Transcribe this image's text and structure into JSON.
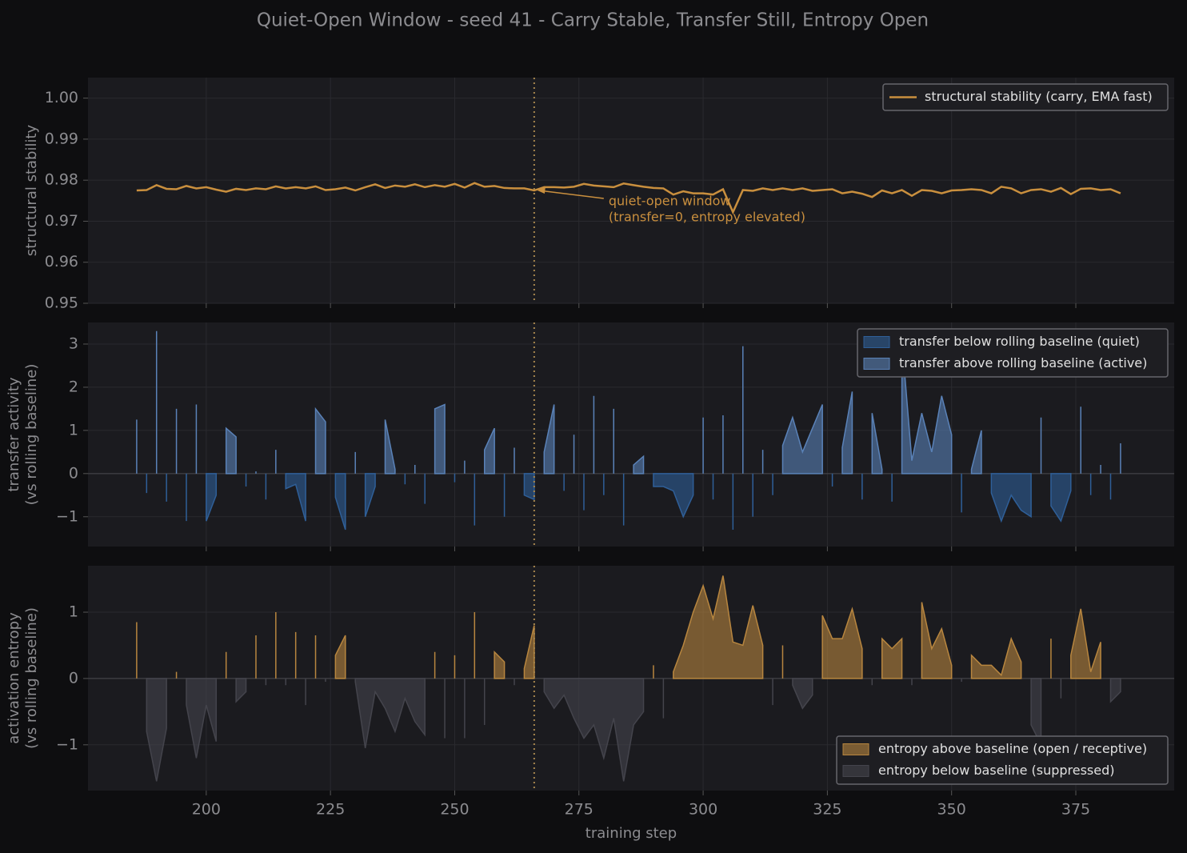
{
  "title": "Quiet-Open Window  - seed 41  - Carry Stable, Transfer Still, Entropy Open",
  "marker_x": 266,
  "chart_data": [
    {
      "type": "line",
      "y_label": [
        "structural stability"
      ],
      "legend": "upper right",
      "annotation": [
        "quiet-open window",
        "(transfer=0, entropy elevated)"
      ],
      "xlim": [
        176.2,
        394.8
      ],
      "xticks": [
        200,
        225,
        250,
        275,
        300,
        325,
        350,
        375
      ],
      "ylim": [
        0.95,
        1.005
      ],
      "yticks": [
        0.95,
        0.96,
        0.97,
        0.98,
        0.99,
        {
          "value": 1,
          "label": "1.00"
        }
      ],
      "grid": true,
      "x": [
        186,
        188,
        190,
        192,
        194,
        196,
        198,
        200,
        202,
        204,
        206,
        208,
        210,
        212,
        214,
        216,
        218,
        220,
        222,
        224,
        226,
        228,
        230,
        232,
        234,
        236,
        238,
        240,
        242,
        244,
        246,
        248,
        250,
        252,
        254,
        256,
        258,
        260,
        262,
        264,
        266,
        268,
        270,
        272,
        274,
        276,
        278,
        280,
        282,
        284,
        286,
        288,
        290,
        292,
        294,
        296,
        298,
        300,
        302,
        304,
        306,
        308,
        310,
        312,
        314,
        316,
        318,
        320,
        322,
        324,
        326,
        328,
        330,
        332,
        334,
        336,
        338,
        340,
        342,
        344,
        346,
        348,
        350,
        352,
        354,
        356,
        358,
        360,
        362,
        364,
        366,
        368,
        370,
        372,
        374,
        376,
        378,
        380,
        382,
        384
      ],
      "series": [
        {
          "name": "structural stability (carry, EMA fast)",
          "color": "#c98f3e",
          "values": [
            0.9775,
            0.9776,
            0.9788,
            0.9779,
            0.9778,
            0.9786,
            0.978,
            0.9783,
            0.9777,
            0.9772,
            0.9779,
            0.9776,
            0.978,
            0.9778,
            0.9785,
            0.978,
            0.9783,
            0.978,
            0.9785,
            0.9776,
            0.9778,
            0.9782,
            0.9775,
            0.9783,
            0.979,
            0.9781,
            0.9787,
            0.9784,
            0.979,
            0.9783,
            0.9788,
            0.9784,
            0.9791,
            0.9782,
            0.9793,
            0.9784,
            0.9786,
            0.9781,
            0.978,
            0.978,
            0.9775,
            0.9783,
            0.9783,
            0.9782,
            0.9784,
            0.9791,
            0.9787,
            0.9785,
            0.9783,
            0.9792,
            0.9788,
            0.9784,
            0.9781,
            0.978,
            0.9765,
            0.9773,
            0.9768,
            0.9768,
            0.9765,
            0.9778,
            0.9722,
            0.9776,
            0.9774,
            0.978,
            0.9776,
            0.978,
            0.9776,
            0.978,
            0.9774,
            0.9776,
            0.9778,
            0.9768,
            0.9772,
            0.9767,
            0.9759,
            0.9775,
            0.9768,
            0.9776,
            0.9762,
            0.9776,
            0.9774,
            0.9768,
            0.9775,
            0.9776,
            0.9778,
            0.9776,
            0.9768,
            0.9784,
            0.978,
            0.9768,
            0.9776,
            0.9778,
            0.9772,
            0.9781,
            0.9766,
            0.9779,
            0.978,
            0.9776,
            0.9778,
            0.9768
          ]
        }
      ]
    },
    {
      "type": "area",
      "y_label": [
        "transfer activity",
        "(vs rolling baseline)"
      ],
      "legend": "upper right",
      "xlim": [
        176.2,
        394.8
      ],
      "xticks": [
        200,
        225,
        250,
        275,
        300,
        325,
        350,
        375
      ],
      "ylim": [
        -1.69,
        3.5
      ],
      "yticks": [
        {
          "value": -1,
          "label": "−1"
        },
        0,
        1,
        2,
        3
      ],
      "grid": true,
      "x": [
        186,
        188,
        190,
        192,
        194,
        196,
        198,
        200,
        202,
        204,
        206,
        208,
        210,
        212,
        214,
        216,
        218,
        220,
        222,
        224,
        226,
        228,
        230,
        232,
        234,
        236,
        238,
        240,
        242,
        244,
        246,
        248,
        250,
        252,
        254,
        256,
        258,
        260,
        262,
        264,
        266,
        268,
        270,
        272,
        274,
        276,
        278,
        280,
        282,
        284,
        286,
        288,
        290,
        292,
        294,
        296,
        298,
        300,
        302,
        304,
        306,
        308,
        310,
        312,
        314,
        316,
        318,
        320,
        322,
        324,
        326,
        328,
        330,
        332,
        334,
        336,
        338,
        340,
        342,
        344,
        346,
        348,
        350,
        352,
        354,
        356,
        358,
        360,
        362,
        364,
        366,
        368,
        370,
        372,
        374,
        376,
        378,
        380,
        382,
        384
      ],
      "series": [
        {
          "name": "transfer below rolling baseline  (quiet)",
          "color": "#2f5f98",
          "values": [
            null,
            -0.45,
            null,
            -0.65,
            null,
            -1.1,
            null,
            -1.1,
            -0.5,
            null,
            null,
            -0.3,
            null,
            -0.6,
            null,
            -0.35,
            -0.25,
            -1.1,
            null,
            null,
            -0.55,
            -1.3,
            null,
            -1.0,
            -0.3,
            null,
            null,
            -0.25,
            null,
            -0.7,
            null,
            null,
            -0.2,
            null,
            -1.2,
            null,
            null,
            -1.0,
            null,
            -0.5,
            -0.6,
            null,
            null,
            -0.4,
            null,
            -0.85,
            null,
            -0.5,
            null,
            -1.2,
            null,
            null,
            -0.3,
            -0.3,
            -0.4,
            -1.0,
            -0.5,
            null,
            -0.6,
            null,
            -1.3,
            null,
            -1.0,
            null,
            -0.5,
            null,
            null,
            null,
            null,
            null,
            -0.3,
            null,
            null,
            -0.6,
            null,
            null,
            -0.65,
            null,
            null,
            null,
            null,
            null,
            null,
            -0.9,
            null,
            null,
            -0.45,
            -1.1,
            -0.5,
            -0.85,
            -1.0,
            null,
            -0.75,
            -1.1,
            -0.4,
            null,
            -0.5,
            null,
            -0.6,
            null
          ]
        },
        {
          "name": "transfer above rolling baseline  (active)",
          "color": "#5a82b8",
          "values": [
            1.25,
            null,
            3.3,
            null,
            1.5,
            null,
            1.6,
            null,
            null,
            1.05,
            0.85,
            null,
            0.05,
            null,
            0.55,
            null,
            null,
            null,
            1.5,
            1.2,
            null,
            null,
            0.5,
            null,
            null,
            1.25,
            0.1,
            null,
            0.2,
            null,
            1.5,
            1.6,
            null,
            0.3,
            null,
            0.55,
            1.05,
            null,
            0.6,
            null,
            null,
            0.5,
            1.6,
            null,
            0.9,
            null,
            1.8,
            null,
            1.5,
            null,
            0.2,
            0.4,
            null,
            null,
            null,
            null,
            null,
            1.3,
            null,
            1.35,
            null,
            2.95,
            null,
            0.55,
            null,
            0.65,
            1.3,
            0.5,
            1.05,
            1.6,
            null,
            0.6,
            1.9,
            null,
            1.4,
            0.1,
            null,
            3.1,
            0.3,
            1.4,
            0.5,
            1.8,
            0.9,
            null,
            0.1,
            1.0,
            null,
            null,
            null,
            null,
            null,
            1.3,
            null,
            null,
            null,
            1.55,
            null,
            0.2,
            null,
            0.7
          ]
        }
      ]
    },
    {
      "type": "area",
      "y_label": [
        "activation entropy",
        "(vs rolling baseline)"
      ],
      "x_label": "training step",
      "legend": "lower right",
      "xlim": [
        176.2,
        394.8
      ],
      "xticks": [
        200,
        225,
        250,
        275,
        300,
        325,
        350,
        375
      ],
      "ylim": [
        -1.69,
        1.7
      ],
      "yticks": [
        {
          "value": -1,
          "label": "−1"
        },
        0,
        1
      ],
      "grid": true,
      "x": [
        186,
        188,
        190,
        192,
        194,
        196,
        198,
        200,
        202,
        204,
        206,
        208,
        210,
        212,
        214,
        216,
        218,
        220,
        222,
        224,
        226,
        228,
        230,
        232,
        234,
        236,
        238,
        240,
        242,
        244,
        246,
        248,
        250,
        252,
        254,
        256,
        258,
        260,
        262,
        264,
        266,
        268,
        270,
        272,
        274,
        276,
        278,
        280,
        282,
        284,
        286,
        288,
        290,
        292,
        294,
        296,
        298,
        300,
        302,
        304,
        306,
        308,
        310,
        312,
        314,
        316,
        318,
        320,
        322,
        324,
        326,
        328,
        330,
        332,
        334,
        336,
        338,
        340,
        342,
        344,
        346,
        348,
        350,
        352,
        354,
        356,
        358,
        360,
        362,
        364,
        366,
        368,
        370,
        372,
        374,
        376,
        378,
        380,
        382,
        384
      ],
      "series": [
        {
          "name": "entropy above baseline  (open / receptive)",
          "color": "#b8863f",
          "values": [
            0.85,
            null,
            null,
            null,
            0.1,
            null,
            null,
            null,
            null,
            0.4,
            null,
            null,
            0.65,
            null,
            1.0,
            null,
            0.7,
            null,
            0.65,
            null,
            0.35,
            0.65,
            null,
            null,
            null,
            null,
            null,
            null,
            null,
            null,
            0.4,
            null,
            0.35,
            null,
            1.0,
            null,
            0.4,
            0.25,
            null,
            0.15,
            0.8,
            null,
            null,
            null,
            null,
            null,
            null,
            null,
            null,
            null,
            null,
            null,
            0.2,
            null,
            0.1,
            0.5,
            1.0,
            1.4,
            0.9,
            1.55,
            0.55,
            0.5,
            1.1,
            0.5,
            null,
            0.5,
            null,
            null,
            null,
            0.95,
            0.6,
            0.6,
            1.05,
            0.45,
            null,
            0.6,
            0.45,
            0.6,
            null,
            1.15,
            0.45,
            0.75,
            0.2,
            null,
            0.35,
            0.2,
            0.2,
            0.05,
            0.6,
            0.25,
            null,
            null,
            0.6,
            null,
            0.35,
            1.05,
            0.1,
            0.55,
            null,
            null
          ]
        },
        {
          "name": "entropy below baseline  (suppressed)",
          "color": "#44444c",
          "values": [
            null,
            -0.8,
            -1.55,
            -0.75,
            null,
            -0.4,
            -1.2,
            -0.4,
            -0.95,
            null,
            -0.35,
            -0.2,
            null,
            -0.1,
            null,
            -0.1,
            null,
            -0.4,
            null,
            -0.05,
            null,
            null,
            -0.05,
            -1.05,
            -0.2,
            -0.45,
            -0.8,
            -0.3,
            -0.65,
            -0.85,
            null,
            -0.9,
            null,
            -0.9,
            null,
            -0.7,
            null,
            null,
            -0.1,
            null,
            null,
            -0.2,
            -0.45,
            -0.25,
            -0.6,
            -0.9,
            -0.7,
            -1.2,
            -0.6,
            -1.55,
            -0.7,
            -0.5,
            null,
            -0.6,
            null,
            null,
            null,
            null,
            null,
            null,
            null,
            null,
            null,
            null,
            -0.4,
            null,
            -0.1,
            -0.45,
            -0.25,
            null,
            null,
            null,
            null,
            null,
            -0.1,
            null,
            null,
            null,
            -0.1,
            null,
            null,
            null,
            null,
            -0.05,
            null,
            null,
            null,
            null,
            null,
            null,
            -0.7,
            -1.0,
            null,
            -0.3,
            null,
            null,
            null,
            null,
            -0.35,
            -0.2
          ]
        }
      ]
    }
  ]
}
